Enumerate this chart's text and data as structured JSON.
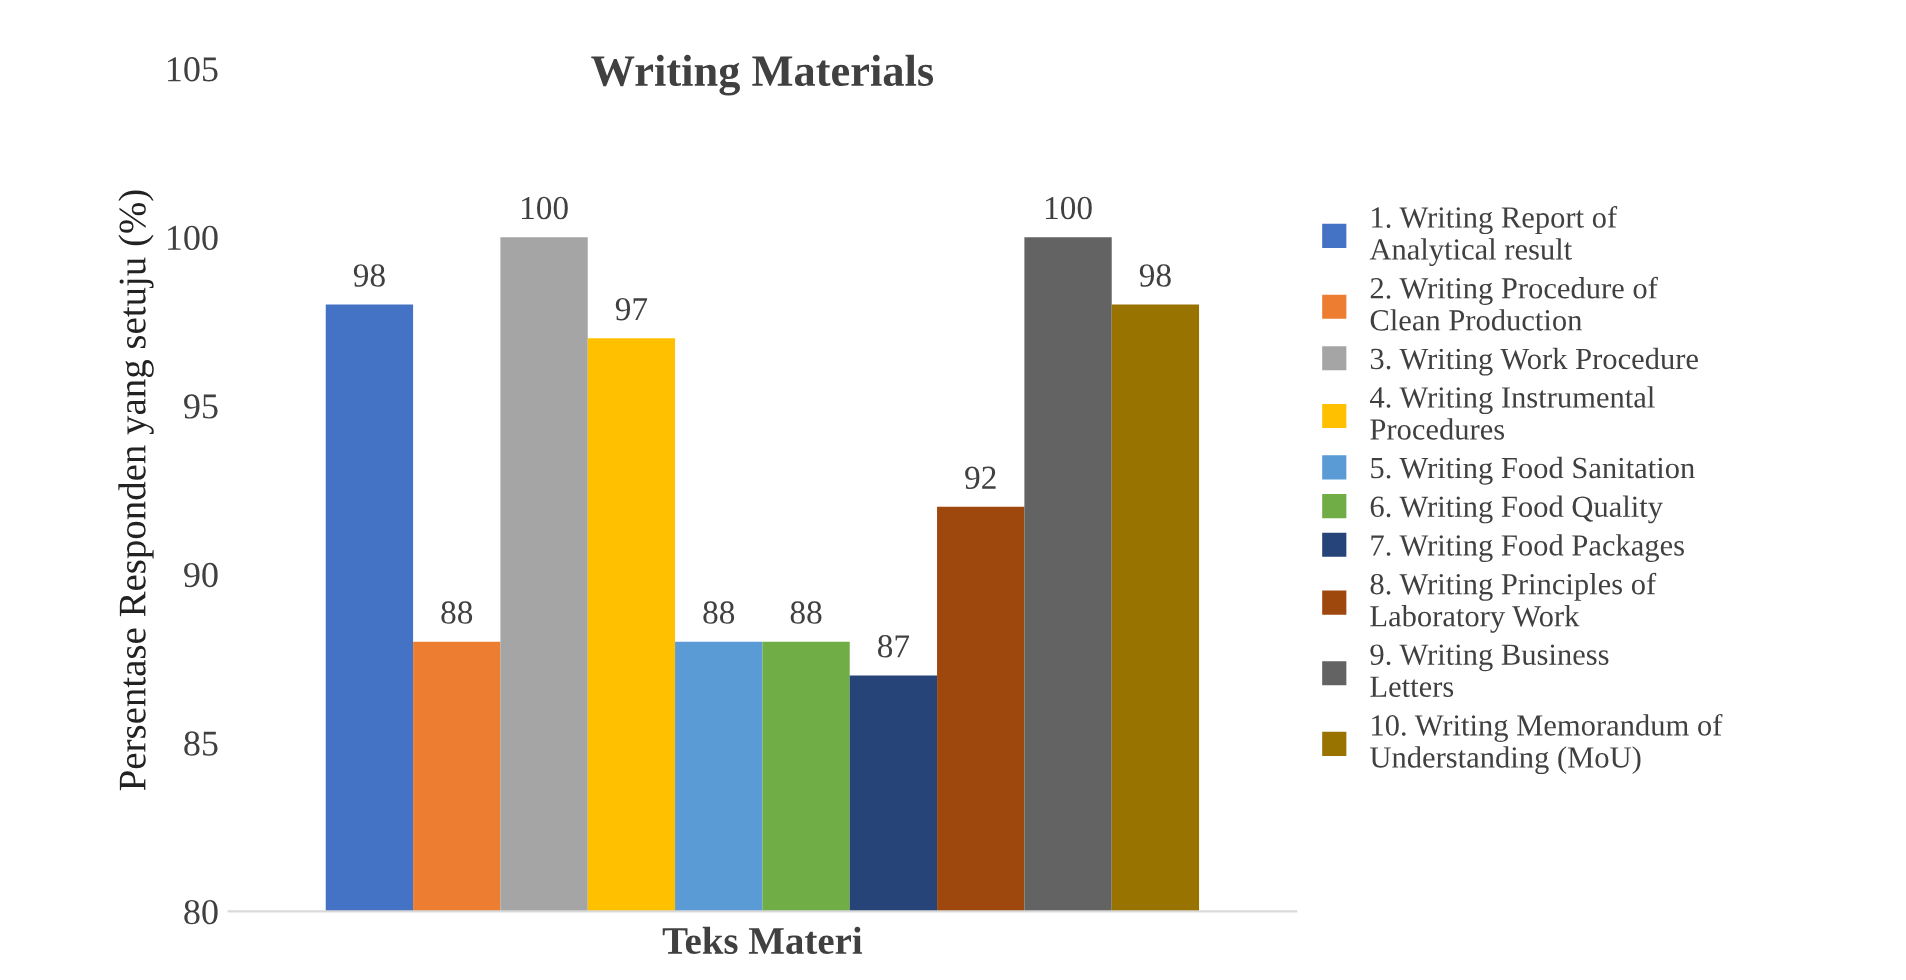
{
  "chart_data": {
    "type": "bar",
    "title": "Writing Materials",
    "xlabel": "Teks Materi",
    "ylabel": "Persentase Responden yang setuju (%)",
    "categories": [
      null
    ],
    "series": [
      {
        "name": "1. Writing Report of Analytical result",
        "color": "#4472c4",
        "values": [
          98
        ]
      },
      {
        "name": "2. Writing Procedure of Clean Production",
        "color": "#ed7d31",
        "values": [
          88
        ]
      },
      {
        "name": "3. Writing Work Procedure",
        "color": "#a5a5a5",
        "values": [
          100
        ]
      },
      {
        "name": "4. Writing Instrumental Procedures",
        "color": "#ffc000",
        "values": [
          97
        ]
      },
      {
        "name": "5. Writing Food Sanitation",
        "color": "#5b9bd5",
        "values": [
          88
        ]
      },
      {
        "name": "6. Writing Food Quality",
        "color": "#70ad47",
        "values": [
          88
        ]
      },
      {
        "name": "7. Writing Food Packages",
        "color": "#264478",
        "values": [
          87
        ]
      },
      {
        "name": "8. Writing Principles of Laboratory Work",
        "color": "#9e480e",
        "values": [
          92
        ]
      },
      {
        "name": "9. Writing Business Letters",
        "color": "#636363",
        "values": [
          100
        ]
      },
      {
        "name": "10. Writing Memorandum of Understanding (MoU)",
        "color": "#997300",
        "values": [
          98
        ]
      }
    ],
    "ylim": [
      80,
      105
    ],
    "yticks": [
      80,
      85,
      90,
      95,
      100,
      105
    ],
    "data_labels": true,
    "legend": "right",
    "grid": false
  }
}
